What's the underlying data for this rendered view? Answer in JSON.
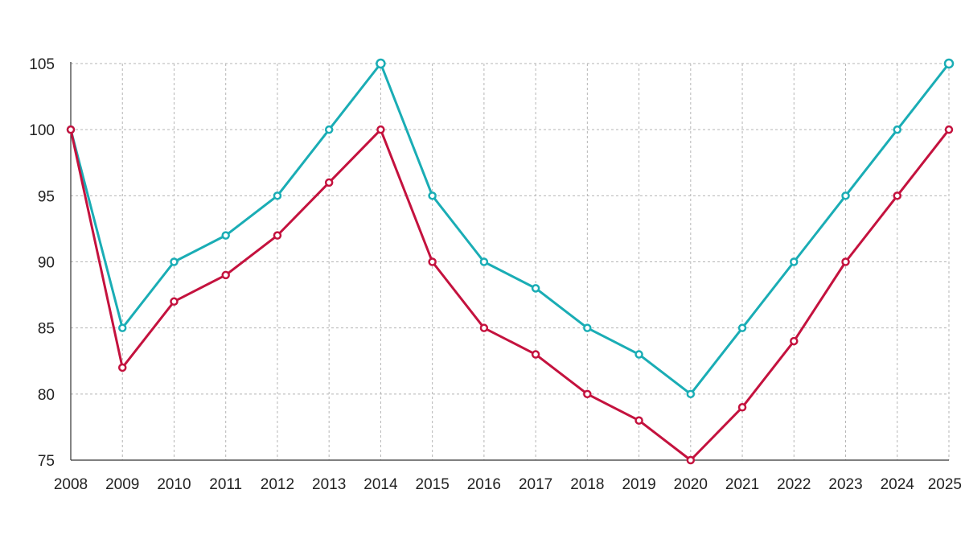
{
  "chart_data": {
    "type": "line",
    "title": "",
    "xlabel": "",
    "ylabel": "",
    "x": [
      2008,
      2009,
      2010,
      2011,
      2012,
      2013,
      2014,
      2015,
      2016,
      2017,
      2018,
      2019,
      2020,
      2021,
      2022,
      2023,
      2024,
      2025
    ],
    "x_tick_labels": [
      "2008",
      "2009",
      "2010",
      "2011",
      "2012",
      "2013",
      "2014",
      "2015",
      "2016",
      "2017",
      "2018",
      "2019",
      "2020",
      "2021",
      "2022",
      "2023",
      "2024",
      "2025"
    ],
    "ylim": [
      75,
      105
    ],
    "y_ticks": [
      75,
      80,
      85,
      90,
      95,
      100,
      105
    ],
    "y_tick_labels": [
      "75",
      "80",
      "85",
      "90",
      "95",
      "100",
      "105"
    ],
    "grid": true,
    "legend": "none",
    "series": [
      {
        "color": "#1aadb5",
        "values": [
          100,
          85,
          90,
          92,
          95,
          100,
          105,
          95,
          90,
          88,
          85,
          83,
          80,
          85,
          90,
          95,
          100,
          105
        ]
      },
      {
        "color": "#c4123e",
        "values": [
          100,
          82,
          87,
          89,
          92,
          96,
          100,
          90,
          85,
          83,
          80,
          78,
          75,
          79,
          84,
          90,
          95,
          100
        ]
      }
    ]
  }
}
